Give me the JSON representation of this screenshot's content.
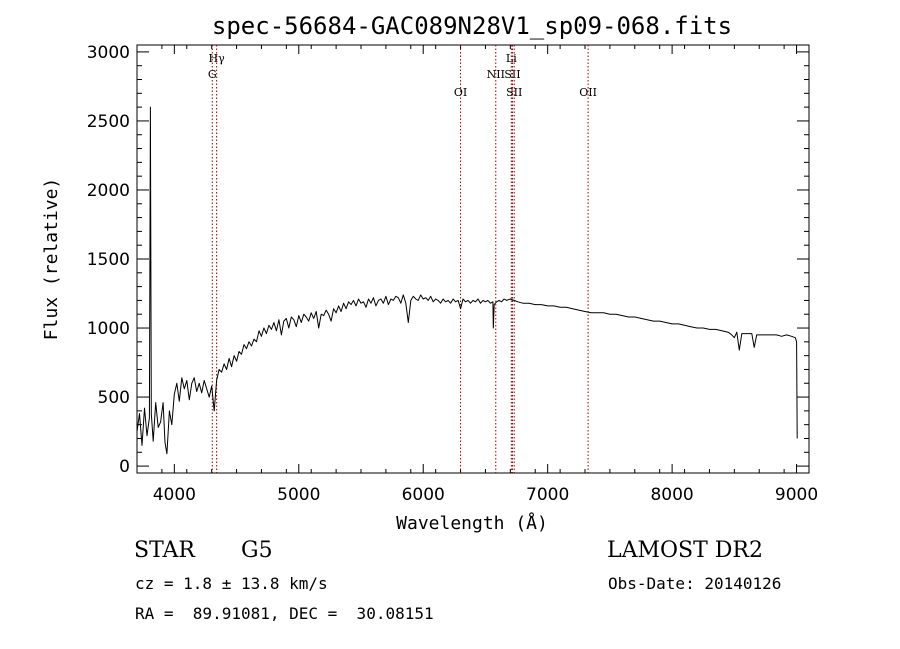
{
  "chart_data": {
    "type": "line",
    "title": "spec-56684-GAC089N28V1_sp09-068.fits",
    "xlabel": "Wavelength (Å)",
    "ylabel": "Flux (relative)",
    "xlim": [
      3700,
      9100
    ],
    "ylim": [
      -50,
      3050
    ],
    "xticks": [
      4000,
      5000,
      6000,
      7000,
      8000,
      9000
    ],
    "yticks": [
      0,
      500,
      1000,
      1500,
      2000,
      2500,
      3000
    ],
    "grid": false,
    "line_color": "#000000",
    "marker_color": "#990000",
    "lines": [
      {
        "label": "Hγ",
        "wavelength": 4340,
        "row": 1
      },
      {
        "label": "G",
        "wavelength": 4305,
        "row": 2
      },
      {
        "label": "OI",
        "wavelength": 6300,
        "row": 3
      },
      {
        "label": "NII",
        "wavelength": 6583,
        "row": 2
      },
      {
        "label": "Li",
        "wavelength": 6708,
        "row": 1
      },
      {
        "label": "SII",
        "wavelength": 6717,
        "row": 2
      },
      {
        "label": "SII",
        "wavelength": 6731,
        "row": 3
      },
      {
        "label": "OII",
        "wavelength": 7325,
        "row": 3
      }
    ],
    "spectrum": [
      [
        3700,
        250
      ],
      [
        3720,
        380
      ],
      [
        3740,
        150
      ],
      [
        3760,
        420
      ],
      [
        3780,
        220
      ],
      [
        3800,
        350
      ],
      [
        3808,
        2600
      ],
      [
        3815,
        380
      ],
      [
        3830,
        180
      ],
      [
        3850,
        460
      ],
      [
        3870,
        280
      ],
      [
        3890,
        320
      ],
      [
        3910,
        460
      ],
      [
        3925,
        170
      ],
      [
        3940,
        90
      ],
      [
        3960,
        400
      ],
      [
        3980,
        300
      ],
      [
        4000,
        520
      ],
      [
        4020,
        600
      ],
      [
        4040,
        470
      ],
      [
        4060,
        640
      ],
      [
        4080,
        560
      ],
      [
        4100,
        620
      ],
      [
        4120,
        480
      ],
      [
        4140,
        600
      ],
      [
        4160,
        640
      ],
      [
        4180,
        540
      ],
      [
        4200,
        600
      ],
      [
        4220,
        530
      ],
      [
        4240,
        620
      ],
      [
        4260,
        560
      ],
      [
        4280,
        500
      ],
      [
        4300,
        580
      ],
      [
        4320,
        400
      ],
      [
        4340,
        620
      ],
      [
        4360,
        700
      ],
      [
        4380,
        680
      ],
      [
        4400,
        740
      ],
      [
        4420,
        700
      ],
      [
        4440,
        780
      ],
      [
        4460,
        720
      ],
      [
        4480,
        800
      ],
      [
        4500,
        760
      ],
      [
        4520,
        830
      ],
      [
        4540,
        810
      ],
      [
        4560,
        880
      ],
      [
        4580,
        850
      ],
      [
        4600,
        900
      ],
      [
        4620,
        870
      ],
      [
        4640,
        920
      ],
      [
        4660,
        900
      ],
      [
        4680,
        980
      ],
      [
        4700,
        940
      ],
      [
        4720,
        1000
      ],
      [
        4740,
        960
      ],
      [
        4760,
        1020
      ],
      [
        4780,
        990
      ],
      [
        4800,
        1040
      ],
      [
        4820,
        980
      ],
      [
        4840,
        1060
      ],
      [
        4860,
        950
      ],
      [
        4880,
        1050
      ],
      [
        4900,
        1070
      ],
      [
        4920,
        1000
      ],
      [
        4940,
        1080
      ],
      [
        4960,
        1060
      ],
      [
        4980,
        1010
      ],
      [
        5000,
        1090
      ],
      [
        5020,
        1040
      ],
      [
        5040,
        1100
      ],
      [
        5060,
        1080
      ],
      [
        5080,
        1050
      ],
      [
        5100,
        1110
      ],
      [
        5120,
        1070
      ],
      [
        5140,
        1120
      ],
      [
        5160,
        1000
      ],
      [
        5180,
        1100
      ],
      [
        5200,
        1090
      ],
      [
        5220,
        1130
      ],
      [
        5240,
        1100
      ],
      [
        5260,
        1050
      ],
      [
        5280,
        1140
      ],
      [
        5300,
        1110
      ],
      [
        5320,
        1160
      ],
      [
        5340,
        1120
      ],
      [
        5360,
        1180
      ],
      [
        5380,
        1140
      ],
      [
        5400,
        1190
      ],
      [
        5420,
        1170
      ],
      [
        5440,
        1200
      ],
      [
        5460,
        1160
      ],
      [
        5480,
        1210
      ],
      [
        5500,
        1180
      ],
      [
        5520,
        1190
      ],
      [
        5540,
        1150
      ],
      [
        5560,
        1210
      ],
      [
        5580,
        1180
      ],
      [
        5600,
        1220
      ],
      [
        5620,
        1160
      ],
      [
        5640,
        1200
      ],
      [
        5660,
        1210
      ],
      [
        5680,
        1180
      ],
      [
        5700,
        1230
      ],
      [
        5720,
        1170
      ],
      [
        5740,
        1210
      ],
      [
        5760,
        1200
      ],
      [
        5780,
        1230
      ],
      [
        5800,
        1220
      ],
      [
        5820,
        1180
      ],
      [
        5840,
        1240
      ],
      [
        5860,
        1180
      ],
      [
        5880,
        1040
      ],
      [
        5900,
        1200
      ],
      [
        5920,
        1230
      ],
      [
        5940,
        1210
      ],
      [
        5960,
        1200
      ],
      [
        5980,
        1240
      ],
      [
        6000,
        1210
      ],
      [
        6020,
        1220
      ],
      [
        6040,
        1200
      ],
      [
        6060,
        1230
      ],
      [
        6080,
        1190
      ],
      [
        6100,
        1210
      ],
      [
        6120,
        1200
      ],
      [
        6140,
        1180
      ],
      [
        6160,
        1210
      ],
      [
        6180,
        1190
      ],
      [
        6200,
        1200
      ],
      [
        6220,
        1180
      ],
      [
        6240,
        1210
      ],
      [
        6260,
        1190
      ],
      [
        6280,
        1200
      ],
      [
        6300,
        1140
      ],
      [
        6320,
        1210
      ],
      [
        6340,
        1190
      ],
      [
        6360,
        1200
      ],
      [
        6380,
        1180
      ],
      [
        6400,
        1200
      ],
      [
        6420,
        1190
      ],
      [
        6440,
        1210
      ],
      [
        6460,
        1180
      ],
      [
        6480,
        1200
      ],
      [
        6500,
        1190
      ],
      [
        6520,
        1200
      ],
      [
        6540,
        1180
      ],
      [
        6560,
        1190
      ],
      [
        6563,
        1000
      ],
      [
        6570,
        1170
      ],
      [
        6590,
        1190
      ],
      [
        6610,
        1200
      ],
      [
        6630,
        1190
      ],
      [
        6650,
        1210
      ],
      [
        6670,
        1200
      ],
      [
        6700,
        1210
      ],
      [
        6730,
        1200
      ],
      [
        6760,
        1190
      ],
      [
        6800,
        1180
      ],
      [
        6850,
        1180
      ],
      [
        6900,
        1170
      ],
      [
        6950,
        1170
      ],
      [
        7000,
        1160
      ],
      [
        7050,
        1160
      ],
      [
        7100,
        1150
      ],
      [
        7150,
        1150
      ],
      [
        7200,
        1140
      ],
      [
        7250,
        1130
      ],
      [
        7300,
        1120
      ],
      [
        7350,
        1110
      ],
      [
        7400,
        1110
      ],
      [
        7450,
        1110
      ],
      [
        7500,
        1100
      ],
      [
        7550,
        1100
      ],
      [
        7600,
        1090
      ],
      [
        7650,
        1080
      ],
      [
        7700,
        1080
      ],
      [
        7750,
        1070
      ],
      [
        7800,
        1060
      ],
      [
        7850,
        1050
      ],
      [
        7900,
        1050
      ],
      [
        7950,
        1040
      ],
      [
        8000,
        1030
      ],
      [
        8050,
        1030
      ],
      [
        8100,
        1020
      ],
      [
        8150,
        1010
      ],
      [
        8200,
        1000
      ],
      [
        8250,
        1000
      ],
      [
        8300,
        990
      ],
      [
        8350,
        990
      ],
      [
        8400,
        980
      ],
      [
        8450,
        970
      ],
      [
        8480,
        950
      ],
      [
        8500,
        930
      ],
      [
        8520,
        970
      ],
      [
        8540,
        840
      ],
      [
        8560,
        960
      ],
      [
        8600,
        960
      ],
      [
        8640,
        960
      ],
      [
        8660,
        860
      ],
      [
        8680,
        950
      ],
      [
        8720,
        950
      ],
      [
        8760,
        950
      ],
      [
        8800,
        950
      ],
      [
        8840,
        950
      ],
      [
        8880,
        940
      ],
      [
        8920,
        950
      ],
      [
        8960,
        940
      ],
      [
        8990,
        930
      ],
      [
        9000,
        900
      ],
      [
        9005,
        200
      ]
    ]
  },
  "footer": {
    "object_class": "STAR",
    "subclass": "G5",
    "redshift": "cz = 1.8 ± 13.8 km/s",
    "coords": "RA =  89.91081, DEC =  30.08151",
    "survey": "LAMOST DR2",
    "obs_date": "Obs-Date: 20140126"
  }
}
